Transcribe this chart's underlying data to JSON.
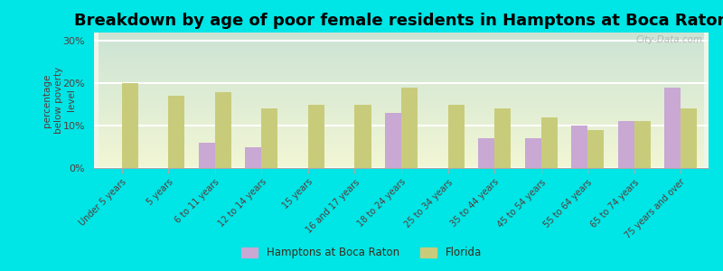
{
  "title": "Breakdown by age of poor female residents in Hamptons at Boca Raton",
  "ylabel": "percentage\nbelow poverty\nlevel",
  "categories": [
    "Under 5 years",
    "5 years",
    "6 to 11 years",
    "12 to 14 years",
    "15 years",
    "16 and 17 years",
    "18 to 24 years",
    "25 to 34 years",
    "35 to 44 years",
    "45 to 54 years",
    "55 to 64 years",
    "65 to 74 years",
    "75 years and over"
  ],
  "hamptons_values": [
    0,
    0,
    6,
    5,
    0,
    0,
    13,
    0,
    7,
    7,
    10,
    11,
    19
  ],
  "florida_values": [
    20,
    17,
    18,
    14,
    15,
    15,
    19,
    15,
    14,
    12,
    9,
    11,
    14
  ],
  "hamptons_color": "#c9a8d4",
  "florida_color": "#c8cc7a",
  "background_color": "#00e5e5",
  "plot_bg_color": "#e8efd8",
  "ylim": [
    0,
    32
  ],
  "yticks": [
    0,
    10,
    20,
    30
  ],
  "ytick_labels": [
    "0%",
    "10%",
    "20%",
    "30%"
  ],
  "title_fontsize": 13,
  "axis_label_color": "#5a3a3a",
  "tick_label_color": "#5a3a3a",
  "legend_labels": [
    "Hamptons at Boca Raton",
    "Florida"
  ],
  "watermark": "City-Data.com"
}
